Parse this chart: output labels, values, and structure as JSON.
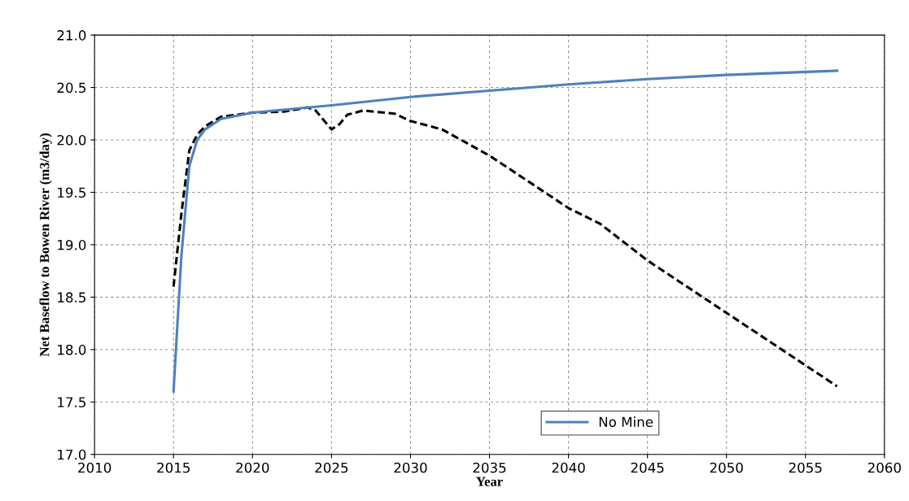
{
  "chart_data": {
    "type": "line",
    "xlabel": "Year",
    "ylabel": "Net Baseflow to Bowen River (m3/day)",
    "xlim": [
      2010,
      2060
    ],
    "xticks": [
      2010,
      2015,
      2020,
      2025,
      2030,
      2035,
      2040,
      2045,
      2050,
      2055,
      2060
    ],
    "ylim": [
      17.0,
      21.0
    ],
    "yticks": [
      {
        "value": 17.0,
        "label": "17.0"
      },
      {
        "value": 17.5,
        "label": "17.5"
      },
      {
        "value": 18.0,
        "label": "18.0"
      },
      {
        "value": 18.5,
        "label": "18.5"
      },
      {
        "value": 19.0,
        "label": "19.0"
      },
      {
        "value": 19.5,
        "label": "19.5"
      },
      {
        "value": 20.0,
        "label": "20.0"
      },
      {
        "value": 20.5,
        "label": "20.5"
      },
      {
        "value": 21.0,
        "label": "21.0"
      }
    ],
    "grid": true,
    "legend": "bottom",
    "marker": "none",
    "series": [
      {
        "color": "#000000",
        "line_style": "dashed",
        "x": [
          2015,
          2015.5,
          2016,
          2016.5,
          2017,
          2018,
          2020,
          2022,
          2023.5,
          2024,
          2025,
          2025.5,
          2026,
          2027,
          2029,
          2030,
          2032,
          2035,
          2038,
          2040,
          2042,
          2045,
          2050,
          2054,
          2057
        ],
        "values": [
          18.6,
          19.3,
          19.9,
          20.05,
          20.13,
          20.22,
          20.26,
          20.27,
          20.31,
          20.28,
          20.1,
          20.15,
          20.24,
          20.28,
          20.25,
          20.18,
          20.1,
          19.85,
          19.55,
          19.35,
          19.2,
          18.85,
          18.35,
          17.95,
          17.65
        ]
      },
      {
        "name": "No Mine",
        "color": "#4f81bd",
        "line_style": "solid",
        "x": [
          2015,
          2015.5,
          2016,
          2016.5,
          2017,
          2018,
          2020,
          2025,
          2030,
          2035,
          2040,
          2045,
          2050,
          2057
        ],
        "values": [
          17.6,
          18.9,
          19.75,
          20.0,
          20.1,
          20.2,
          20.26,
          20.33,
          20.41,
          20.47,
          20.53,
          20.58,
          20.62,
          20.66
        ]
      }
    ]
  }
}
